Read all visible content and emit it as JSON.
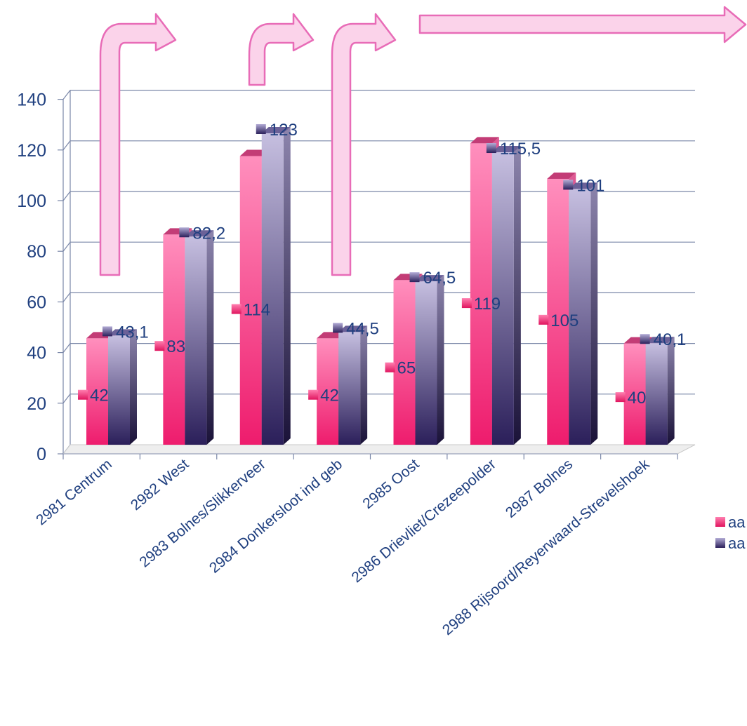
{
  "chart_data": {
    "type": "bar",
    "categories": [
      "2981 Centrum",
      "2982 West",
      "2983 Bolnes/Slikkerveer",
      "2984 Donkersloot ind geb",
      "2985 Oost",
      "2986 Drievliet/Crezeepolder",
      "2987 Bolnes",
      "2988 Rijsoord/Reyerwaard-Strevelshoek"
    ],
    "series": [
      {
        "name": "aa",
        "values": [
          42,
          83,
          114,
          42,
          65,
          119,
          105,
          40
        ],
        "value_labels": [
          "42",
          "83",
          "114",
          "42",
          "65",
          "119",
          "105",
          "40"
        ],
        "color": "#e8347a"
      },
      {
        "name": "aa",
        "values": [
          43.1,
          82.2,
          123,
          44.5,
          64.5,
          115.5,
          101,
          40.1
        ],
        "value_labels": [
          "43,1",
          "82,2",
          "123",
          "44,5",
          "64,5",
          "115,5",
          "101",
          "40,1"
        ],
        "color": "#5c4f8e"
      }
    ],
    "y_ticks": [
      "0",
      "20",
      "40",
      "60",
      "80",
      "100",
      "120",
      "140"
    ],
    "ylim": [
      0,
      140
    ],
    "grid": true,
    "legend_position": "right",
    "title": "",
    "xlabel": "",
    "ylabel": "",
    "annotations": "pink arrow overlays above the bars",
    "colors": {
      "axis_text": "#1f3f7f",
      "grid": "#7a87a8",
      "arrow_fill": "#fbd3ea",
      "arrow_stroke": "#e86cb7"
    }
  }
}
